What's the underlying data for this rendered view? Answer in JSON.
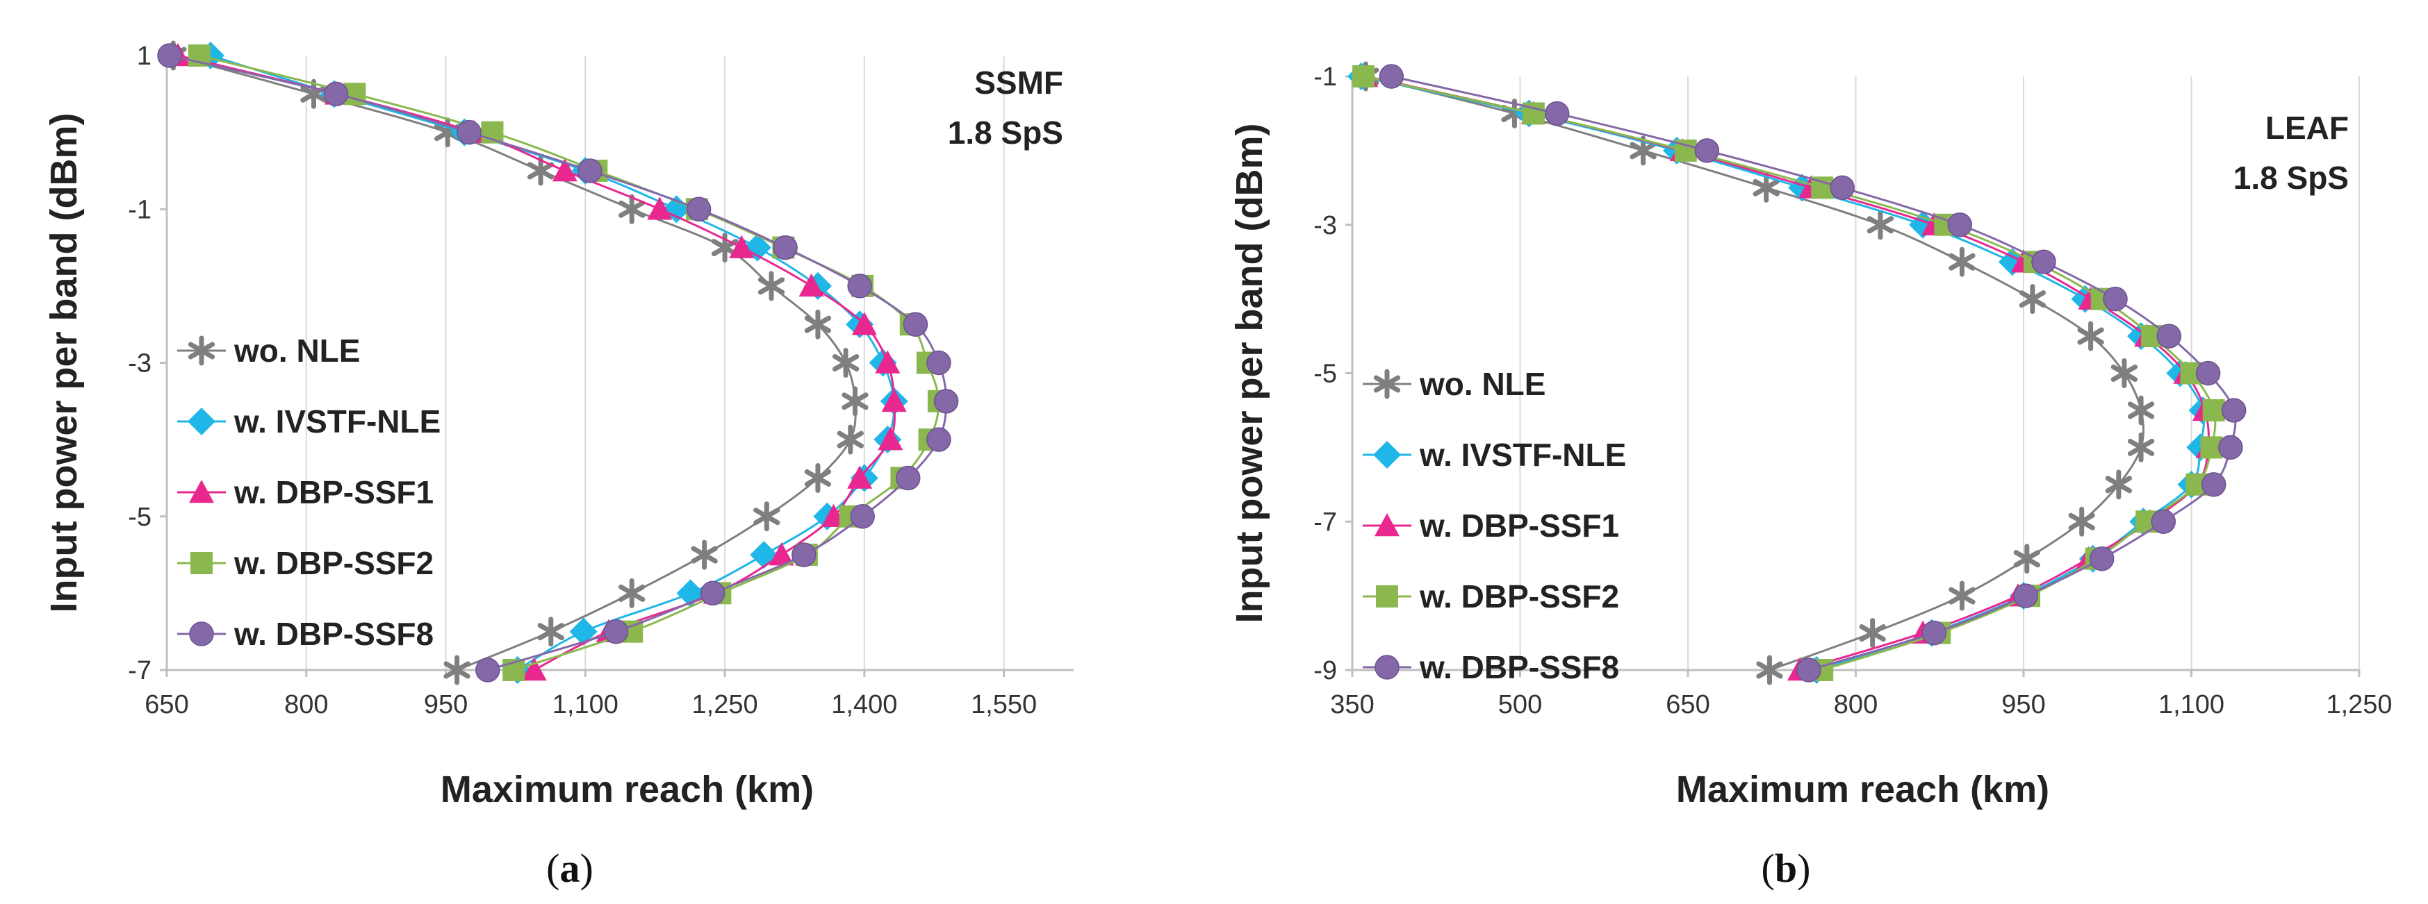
{
  "chart_data": [
    {
      "type": "line",
      "panel_label": "a",
      "annotation": [
        "SSMF",
        "1.8 SpS"
      ],
      "xlabel": "Maximum reach (km)",
      "ylabel": "Input power per band (dBm)",
      "xlim": [
        650,
        1625
      ],
      "ylim": [
        -7,
        1
      ],
      "x_ticks": [
        "650",
        "800",
        "950",
        "1,100",
        "1,250",
        "1,400",
        "1,550"
      ],
      "x_tick_values": [
        650,
        800,
        950,
        1100,
        1250,
        1400,
        1550
      ],
      "y_ticks": [
        "1",
        "-1",
        "-3",
        "-5",
        "-7"
      ],
      "y_tick_values": [
        1,
        -1,
        -3,
        -5,
        -7
      ],
      "grid": "vertical",
      "legend": "left",
      "y": [
        1,
        0.5,
        0,
        -0.5,
        -1,
        -1.5,
        -2,
        -2.5,
        -3,
        -3.5,
        -4,
        -4.5,
        -5,
        -5.5,
        -6,
        -6.5,
        -7
      ],
      "series": [
        {
          "name": "wo. NLE",
          "color": "#7f7f7f",
          "marker": "star",
          "values": [
            657,
            808,
            952,
            1052,
            1150,
            1250,
            1300,
            1350,
            1380,
            1390,
            1385,
            1350,
            1295,
            1228,
            1150,
            1063,
            962
          ]
        },
        {
          "name": "w. IVSTF-NLE",
          "color": "#1fb6e8",
          "marker": "diamond",
          "values": [
            697,
            830,
            970,
            1100,
            1198,
            1285,
            1350,
            1395,
            1420,
            1432,
            1425,
            1400,
            1360,
            1292,
            1213,
            1098,
            1027
          ]
        },
        {
          "name": "w. DBP-SSF1",
          "color": "#e8278f",
          "marker": "triangle",
          "values": [
            662,
            833,
            980,
            1078,
            1180,
            1268,
            1343,
            1400,
            1425,
            1432,
            1428,
            1395,
            1367,
            1311,
            1240,
            1125,
            1045
          ]
        },
        {
          "name": "w. DBP-SSF2",
          "color": "#8ab84e",
          "marker": "square",
          "values": [
            685,
            852,
            1000,
            1112,
            1220,
            1313,
            1398,
            1450,
            1468,
            1480,
            1470,
            1440,
            1385,
            1338,
            1245,
            1150,
            1023
          ]
        },
        {
          "name": "w. DBP-SSF8",
          "color": "#8568a8",
          "marker": "circle",
          "values": [
            653,
            832,
            975,
            1105,
            1222,
            1315,
            1395,
            1455,
            1480,
            1488,
            1480,
            1447,
            1398,
            1335,
            1237,
            1133,
            995
          ]
        }
      ]
    },
    {
      "type": "line",
      "panel_label": "b",
      "annotation": [
        "LEAF",
        "1.8 SpS"
      ],
      "xlabel": "Maximum reach (km)",
      "ylabel": "Input power per band (dBm)",
      "xlim": [
        350,
        1250
      ],
      "ylim": [
        -9,
        -1
      ],
      "x_ticks": [
        "350",
        "500",
        "650",
        "800",
        "950",
        "1,100",
        "1,250"
      ],
      "x_tick_values": [
        350,
        500,
        650,
        800,
        950,
        1100,
        1250
      ],
      "y_ticks": [
        "-1",
        "-3",
        "-5",
        "-7",
        "-9"
      ],
      "y_tick_values": [
        -1,
        -3,
        -5,
        -7,
        -9
      ],
      "grid": "vertical",
      "legend": "left",
      "y": [
        -1,
        -1.5,
        -2,
        -2.5,
        -3,
        -3.5,
        -4,
        -4.5,
        -5,
        -5.5,
        -6,
        -6.5,
        -7,
        -7.5,
        -8,
        -8.5,
        -9
      ],
      "series": [
        {
          "name": "wo. NLE",
          "color": "#7f7f7f",
          "marker": "star",
          "values": [
            362,
            495,
            610,
            720,
            822,
            895,
            958,
            1010,
            1040,
            1055,
            1055,
            1035,
            1002,
            953,
            895,
            815,
            723
          ]
        },
        {
          "name": "w. IVSTF-NLE",
          "color": "#1fb6e8",
          "marker": "diamond",
          "values": [
            358,
            508,
            640,
            752,
            860,
            940,
            1005,
            1055,
            1090,
            1110,
            1108,
            1100,
            1057,
            1012,
            950,
            868,
            765
          ]
        },
        {
          "name": "w. DBP-SSF1",
          "color": "#e8278f",
          "marker": "triangle",
          "values": [
            362,
            512,
            645,
            760,
            870,
            950,
            1010,
            1060,
            1095,
            1112,
            1115,
            1105,
            1063,
            1008,
            945,
            860,
            750
          ]
        },
        {
          "name": "w. DBP-SSF2",
          "color": "#8ab84e",
          "marker": "square",
          "values": [
            360,
            512,
            648,
            770,
            880,
            960,
            1020,
            1065,
            1100,
            1120,
            1118,
            1105,
            1060,
            1015,
            955,
            875,
            770
          ]
        },
        {
          "name": "w. DBP-SSF8",
          "color": "#8568a8",
          "marker": "circle",
          "values": [
            385,
            533,
            667,
            788,
            893,
            968,
            1032,
            1080,
            1115,
            1138,
            1135,
            1120,
            1075,
            1020,
            952,
            870,
            758
          ]
        }
      ]
    }
  ]
}
